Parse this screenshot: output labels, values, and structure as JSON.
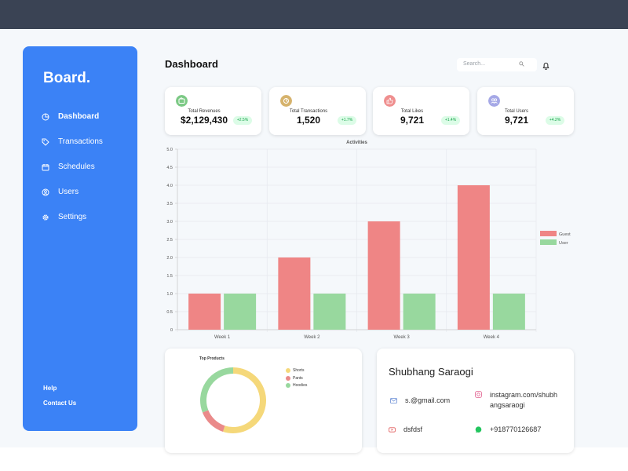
{
  "sidebar": {
    "brand": "Board.",
    "items": [
      {
        "label": "Dashboard",
        "icon": "pie-chart-icon"
      },
      {
        "label": "Transactions",
        "icon": "tag-icon"
      },
      {
        "label": "Schedules",
        "icon": "calendar-icon"
      },
      {
        "label": "Users",
        "icon": "user-icon"
      },
      {
        "label": "Settings",
        "icon": "gear-icon"
      }
    ],
    "help": "Help",
    "contact": "Contact Us"
  },
  "header": {
    "title": "Dashboard",
    "search_placeholder": "Search..."
  },
  "cards": [
    {
      "label": "Total Revenues",
      "value": "$2,129,430",
      "badge": "+2.5%",
      "icon_color": "#7cc985"
    },
    {
      "label": "Total Transactions",
      "value": "1,520",
      "badge": "+1.7%",
      "icon_color": "#d6b36d"
    },
    {
      "label": "Total Likes",
      "value": "9,721",
      "badge": "+1.4%",
      "icon_color": "#ef8f8f"
    },
    {
      "label": "Total Users",
      "value": "9,721",
      "badge": "+4.2%",
      "icon_color": "#a5a8e6"
    }
  ],
  "chart_data": [
    {
      "type": "bar",
      "title": "Activities",
      "categories": [
        "Week 1",
        "Week 2",
        "Week 3",
        "Week 4"
      ],
      "series": [
        {
          "name": "Guest",
          "values": [
            1,
            2,
            3,
            4
          ],
          "color": "#ef8585"
        },
        {
          "name": "User",
          "values": [
            1,
            1,
            1,
            1
          ],
          "color": "#98d89e"
        }
      ],
      "yticks": [
        "0",
        "0.5",
        "1.0",
        "1.5",
        "2.0",
        "2.5",
        "3.0",
        "3.5",
        "4.0",
        "4.5",
        "5.0"
      ],
      "ylim": [
        0,
        5
      ],
      "grid": true,
      "legend": "right"
    },
    {
      "type": "pie",
      "title": "Top Products",
      "labels": [
        "Shorts",
        "Pants",
        "Hoodies"
      ],
      "values": [
        55,
        14,
        31
      ],
      "colors": [
        "#f5d87a",
        "#ea8a8a",
        "#98d89e"
      ],
      "legend": "right"
    }
  ],
  "profile": {
    "name": "Shubhang Saraogi",
    "email": "s.@gmail.com",
    "instagram": "instagram.com/shubhangsaraogi",
    "youtube": "dsfdsf",
    "phone": "+918770126687",
    "colors": {
      "email": "#6b8ed6",
      "instagram": "#e05a8a",
      "youtube": "#e05a5a",
      "phone": "#22c55e"
    }
  }
}
